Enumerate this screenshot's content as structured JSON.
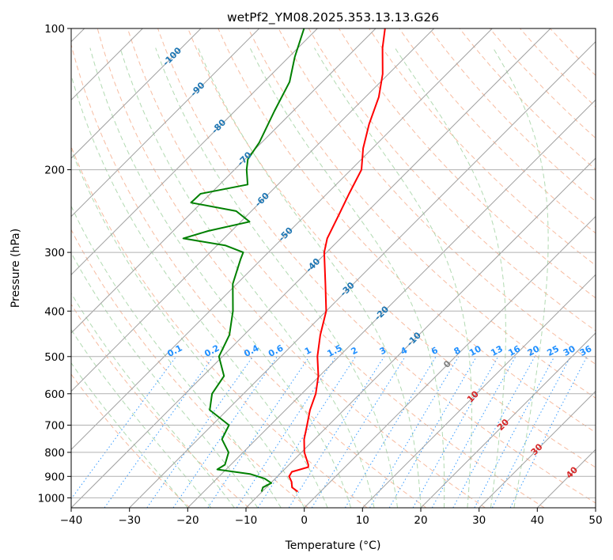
{
  "chart_data": {
    "type": "line",
    "subtype": "skew-t log-p diagram",
    "title": "wetPf2_YM08.2025.353.13.13.G26",
    "xlabel": "Temperature (°C)",
    "ylabel": "Pressure (hPa)",
    "xlim": [
      -40,
      50
    ],
    "ylim": [
      1050,
      100
    ],
    "y_scale": "log",
    "x_ticks": [
      -40,
      -30,
      -20,
      -10,
      0,
      10,
      20,
      30,
      40,
      50
    ],
    "y_ticks": [
      1000,
      900,
      800,
      700,
      600,
      500,
      400,
      300,
      200,
      100
    ],
    "grid": true,
    "series": [
      {
        "id": "temperature",
        "color": "#ff0000",
        "points": [
          {
            "p": 970,
            "t": -3.9
          },
          {
            "p": 950,
            "t": -5.6
          },
          {
            "p": 925,
            "t": -6.6
          },
          {
            "p": 900,
            "t": -8.0
          },
          {
            "p": 880,
            "t": -8.3
          },
          {
            "p": 860,
            "t": -6.3
          },
          {
            "p": 850,
            "t": -6.7
          },
          {
            "p": 800,
            "t": -9.5
          },
          {
            "p": 750,
            "t": -11.8
          },
          {
            "p": 700,
            "t": -13.7
          },
          {
            "p": 650,
            "t": -15.8
          },
          {
            "p": 600,
            "t": -17.6
          },
          {
            "p": 550,
            "t": -20.2
          },
          {
            "p": 500,
            "t": -23.7
          },
          {
            "p": 450,
            "t": -26.9
          },
          {
            "p": 400,
            "t": -30.0
          },
          {
            "p": 350,
            "t": -34.8
          },
          {
            "p": 300,
            "t": -40.4
          },
          {
            "p": 280,
            "t": -42.3
          },
          {
            "p": 250,
            "t": -44.3
          },
          {
            "p": 225,
            "t": -46.2
          },
          {
            "p": 200,
            "t": -48.2
          },
          {
            "p": 180,
            "t": -51.6
          },
          {
            "p": 160,
            "t": -54.7
          },
          {
            "p": 140,
            "t": -57.7
          },
          {
            "p": 125,
            "t": -61.0
          },
          {
            "p": 110,
            "t": -65.5
          },
          {
            "p": 100,
            "t": -68.4
          }
        ]
      },
      {
        "id": "dewpoint",
        "color": "#008000",
        "points": [
          {
            "p": 970,
            "t": -10.1
          },
          {
            "p": 950,
            "t": -10.6
          },
          {
            "p": 930,
            "t": -9.9
          },
          {
            "p": 910,
            "t": -11.8
          },
          {
            "p": 890,
            "t": -15.0
          },
          {
            "p": 870,
            "t": -21.5
          },
          {
            "p": 850,
            "t": -21.0
          },
          {
            "p": 800,
            "t": -22.5
          },
          {
            "p": 750,
            "t": -25.9
          },
          {
            "p": 700,
            "t": -27.1
          },
          {
            "p": 650,
            "t": -33.0
          },
          {
            "p": 600,
            "t": -35.4
          },
          {
            "p": 550,
            "t": -36.4
          },
          {
            "p": 500,
            "t": -40.6
          },
          {
            "p": 450,
            "t": -42.5
          },
          {
            "p": 400,
            "t": -46.0
          },
          {
            "p": 350,
            "t": -50.7
          },
          {
            "p": 310,
            "t": -53.6
          },
          {
            "p": 300,
            "t": -54.3
          },
          {
            "p": 290,
            "t": -58.5
          },
          {
            "p": 280,
            "t": -67.0
          },
          {
            "p": 270,
            "t": -64.0
          },
          {
            "p": 258,
            "t": -58.5
          },
          {
            "p": 245,
            "t": -62.6
          },
          {
            "p": 235,
            "t": -71.8
          },
          {
            "p": 225,
            "t": -71.7
          },
          {
            "p": 215,
            "t": -65.2
          },
          {
            "p": 200,
            "t": -67.9
          },
          {
            "p": 190,
            "t": -69.5
          },
          {
            "p": 175,
            "t": -70.4
          },
          {
            "p": 150,
            "t": -73.2
          },
          {
            "p": 130,
            "t": -75.6
          },
          {
            "p": 115,
            "t": -79.0
          },
          {
            "p": 100,
            "t": -82.3
          }
        ]
      }
    ],
    "overlays": {
      "isotherm_colors": "#a0a0a0",
      "dry_adiabat_color": "#f4a582",
      "moist_adiabat_color": "#9fd19f",
      "mixing_ratio_color": "#1f8fff",
      "isotherm_label_color": "#1f77b4",
      "theta_label_color": "#d62728",
      "mixing_ratio_values": [
        "0.1",
        "0.2",
        "0.4",
        "0.6",
        "1",
        "1.5",
        "2",
        "3",
        "4",
        "6",
        "8",
        "10",
        "13",
        "16",
        "20",
        "25",
        "30",
        "36"
      ],
      "isotherm_labels": [
        "-100",
        "-90",
        "-80",
        "-70",
        "-60",
        "-50",
        "-40",
        "-30",
        "-20",
        "-10",
        "0"
      ],
      "theta_labels": [
        "10",
        "20",
        "30",
        "40"
      ]
    }
  }
}
